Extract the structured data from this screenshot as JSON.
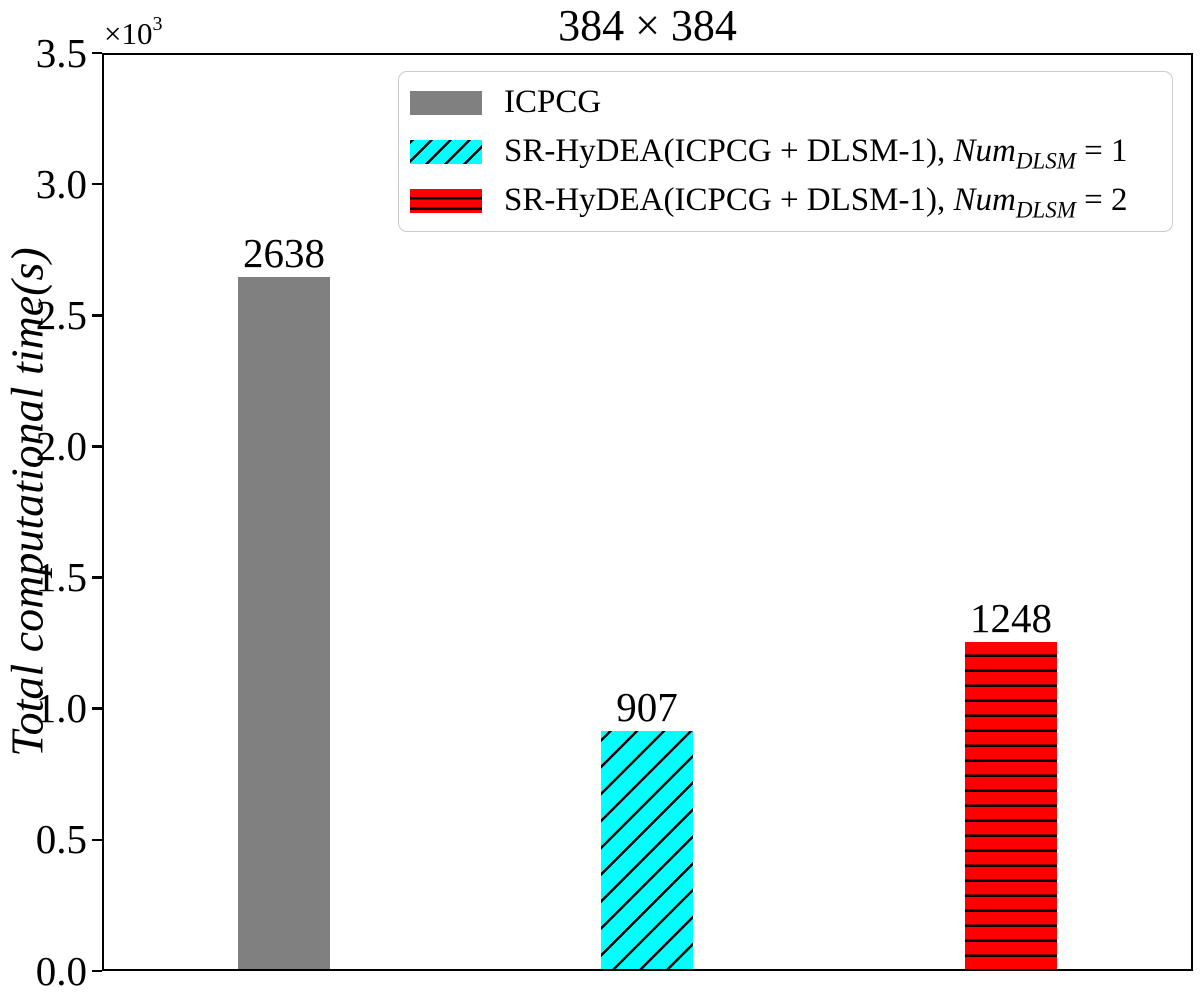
{
  "figure": {
    "title": "384 × 384",
    "y_axis": {
      "label": "Total computational time(s)",
      "offset_base": "×10",
      "offset_exponent": "3",
      "tick_labels_top_to_bottom": [
        "3.5",
        "3.0",
        "2.5",
        "2.0",
        "1.5",
        "1.0",
        "0.5",
        "0.0"
      ]
    }
  },
  "chart_data": {
    "type": "bar",
    "title": "384 × 384",
    "xlabel": "",
    "ylabel": "Total computational time(s)",
    "y_scale_factor": "×10³",
    "ylim": [
      0,
      3500
    ],
    "y_ticks": [
      0,
      500,
      1000,
      1500,
      2000,
      2500,
      3000,
      3500
    ],
    "grid": false,
    "legend_position": "upper center",
    "categories": [
      "ICPCG",
      "SR-HyDEA(ICPCG + DLSM-1), Num_DLSM = 1",
      "SR-HyDEA(ICPCG + DLSM-1), Num_DLSM = 2"
    ],
    "values": [
      2638,
      907,
      1248
    ],
    "bars": [
      {
        "name": "ICPCG",
        "value": 2638,
        "color": "#808080",
        "hatch": "none"
      },
      {
        "name": "SR-HyDEA(ICPCG + DLSM-1), Num_DLSM = 1",
        "value": 907,
        "color": "#00ffff",
        "hatch": "diagonal"
      },
      {
        "name": "SR-HyDEA(ICPCG + DLSM-1), Num_DLSM = 2",
        "value": 1248,
        "color": "#ff0000",
        "hatch": "horizontal"
      }
    ]
  },
  "legend": {
    "entries": [
      {
        "prefix": "ICPCG",
        "var": "",
        "sub": "",
        "eq": ""
      },
      {
        "prefix": "SR-HyDEA(ICPCG + DLSM-1), ",
        "var": "Num",
        "sub": "DLSM",
        "eq": " = 1"
      },
      {
        "prefix": "SR-HyDEA(ICPCG + DLSM-1), ",
        "var": "Num",
        "sub": "DLSM",
        "eq": " = 2"
      }
    ]
  }
}
